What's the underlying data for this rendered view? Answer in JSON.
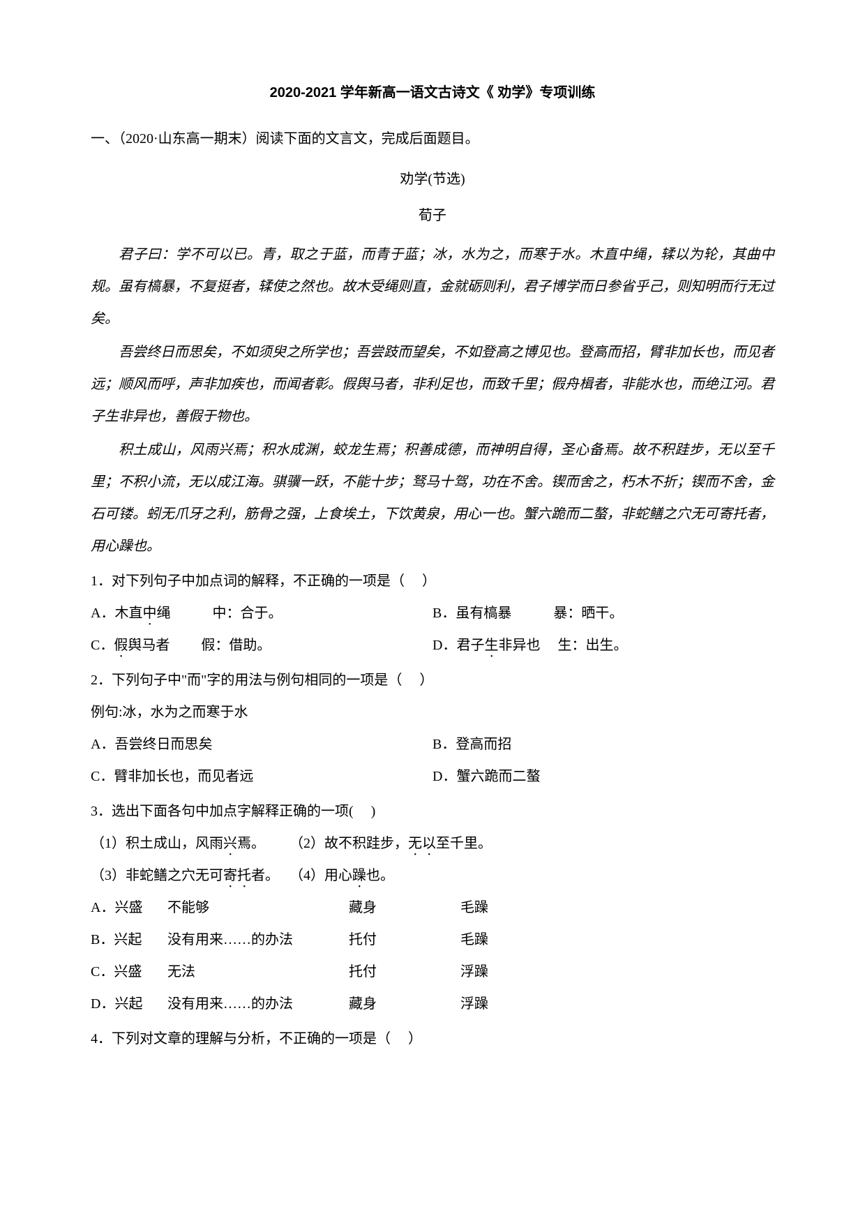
{
  "title": "2020-2021 学年新高一语文古诗文《 劝学》专项训练",
  "source": "一、（2020·山东高一期末）阅读下面的文言文，完成后面题目。",
  "subtitle": "劝学(节选)",
  "author": "荀子",
  "passages": [
    "君子曰：学不可以已。青，取之于蓝，而青于蓝；冰，水为之，而寒于水。木直中绳，𫐓以为轮，其曲中规。虽有槁暴，不复挺者，𫐓使之然也。故木受绳则直，金就砺则利，君子博学而日参省乎己，则知明而行无过矣。",
    "吾尝终日而思矣，不如须臾之所学也；吾尝跂而望矣，不如登高之博见也。登高而招，臂非加长也，而见者远；顺风而呼，声非加疾也，而闻者彰。假舆马者，非利足也，而致千里；假舟楫者，非能水也，而绝江河。君子生非异也，善假于物也。",
    "积土成山，风雨兴焉；积水成渊，蛟龙生焉；积善成德，而神明自得，圣心备焉。故不积跬步，无以至千里；不积小流，无以成江海。骐骥一跃，不能十步；驽马十驾，功在不舍。锲而舍之，朽木不折；锲而不舍，金石可镂。蚓无爪牙之利，筋骨之强，上食埃土，下饮黄泉，用心一也。蟹六跪而二螯，非蛇鳝之穴无可寄托者，用心躁也。"
  ],
  "q1": {
    "stem": "1．对下列句子中加点词的解释，不正确的一项是（　 ）",
    "optA_pre": "A．木直",
    "optA_dot": "中",
    "optA_post": "绳　　　中：合于。",
    "optB": "B．虽有槁暴　　　暴：晒干。",
    "optC_pre": "C．",
    "optC_dot": "假",
    "optC_post": "舆马者　　 假：借助。",
    "optD_pre": "D．君子",
    "optD_dot": "生",
    "optD_post": "非异也　 生：出生。"
  },
  "q2": {
    "stem": "2．下列句子中\"而\"字的用法与例句相同的一项是（　 ）",
    "example": "例句:冰，水为之而寒于水",
    "optA": "A．吾尝终日而思矣",
    "optB": "B．登高而招",
    "optC": "C．臂非加长也，而见者远",
    "optD": "D．蟹六跪而二螯"
  },
  "q3": {
    "stem": "3．选出下面各句中加点字解释正确的一项(　  )",
    "sub1_pre": "（1）积土成山，风雨",
    "sub1_dot": "兴",
    "sub1_post": "焉。",
    "sub2_pre": "（2）故不积跬步，",
    "sub2_dot": "无以",
    "sub2_post": "至千里。",
    "sub3_pre": "（3）非蛇鳝之穴无可",
    "sub3_dot": "寄托",
    "sub3_post": "者。",
    "sub4_pre": "（4）用心",
    "sub4_dot": "躁",
    "sub4_post": "也。",
    "rows": [
      {
        "label": "A．兴盛",
        "c1": "不能够",
        "c2": "藏身",
        "c3": "毛躁"
      },
      {
        "label": "B．兴起",
        "c1": "没有用来……的办法",
        "c2": "托付",
        "c3": "毛躁"
      },
      {
        "label": "C．兴盛",
        "c1": "无法",
        "c2": "托付",
        "c3": "浮躁"
      },
      {
        "label": "D．兴起",
        "c1": "没有用来……的办法",
        "c2": "藏身",
        "c3": "浮躁"
      }
    ]
  },
  "q4": {
    "stem": "4．下列对文章的理解与分析，不正确的一项是（　 ）"
  }
}
